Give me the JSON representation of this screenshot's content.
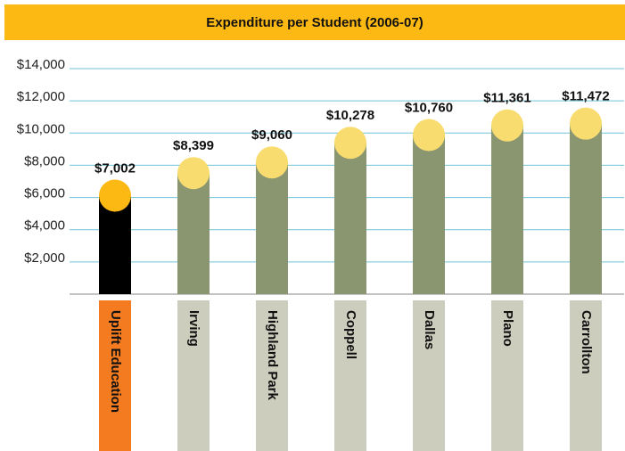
{
  "chart_data": {
    "type": "bar",
    "title": "Expenditure per Student (2006-07)",
    "categories": [
      "Uplift Education",
      "Irving",
      "Highland Park",
      "Coppell",
      "Dallas",
      "Plano",
      "Carrollton"
    ],
    "values": [
      7002,
      8399,
      9060,
      10278,
      10760,
      11361,
      11472
    ],
    "value_labels": [
      "$7,002",
      "$8,399",
      "$9,060",
      "$10,278",
      "$10,760",
      "$11,361",
      "$11,472"
    ],
    "colors": [
      "#000000",
      "#8a9670",
      "#8a9670",
      "#8a9670",
      "#8a9670",
      "#8a9670",
      "#8a9670"
    ],
    "cap_colors": [
      "#fdb913",
      "#f9dc6f",
      "#f9dc6f",
      "#f9dc6f",
      "#f9dc6f",
      "#f9dc6f",
      "#f9dc6f"
    ],
    "category_box_colors": [
      "#f47b20",
      "#cdcdbd",
      "#cdcdbd",
      "#cdcdbd",
      "#cdcdbd",
      "#cdcdbd",
      "#cdcdbd"
    ],
    "title_bar_color": "#fdb913",
    "ylim": [
      0,
      14000
    ],
    "yticks": [
      {
        "value": 2000,
        "label": "$2,000"
      },
      {
        "value": 4000,
        "label": "$4,000"
      },
      {
        "value": 6000,
        "label": "$6,000"
      },
      {
        "value": 8000,
        "label": "$8,000"
      },
      {
        "value": 10000,
        "label": "$10,000"
      },
      {
        "value": 12000,
        "label": "$12,000"
      },
      {
        "value": 14000,
        "label": "$14,000"
      }
    ],
    "grid": true,
    "grid_color": "#6fc3d8"
  }
}
